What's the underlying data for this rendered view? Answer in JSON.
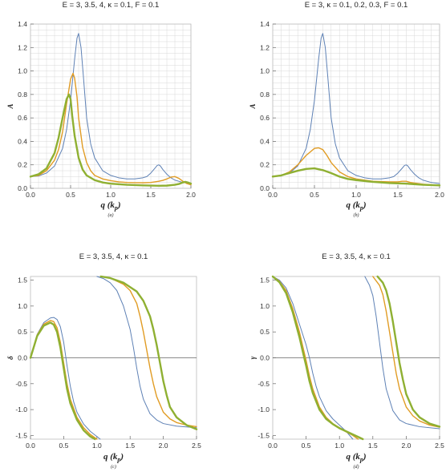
{
  "figure": {
    "xlabel": "q (k",
    "xlabel_sub": "p",
    "xlabel_close": ")",
    "colors": {
      "blue": "#5E81B5",
      "orange": "#E19C24",
      "green": "#8FB032",
      "grid": "#D8D8D8",
      "axis": "#666666"
    }
  },
  "chart_data": [
    {
      "type": "line",
      "title": "E = 3, 3.5, 4, κ = 0.1, F = 0.1",
      "ylabel": "A",
      "caption": "(a)",
      "xlim": [
        0,
        2
      ],
      "ylim": [
        0,
        1.4
      ],
      "xticks": [
        "0.0",
        "0.5",
        "1.0",
        "1.5",
        "2.0"
      ],
      "yticks": [
        "0.0",
        "0.2",
        "0.4",
        "0.6",
        "0.8",
        "1.0",
        "1.2",
        "1.4"
      ],
      "xtick_values": [
        0,
        0.5,
        1.0,
        1.5,
        2.0
      ],
      "ytick_values": [
        0,
        0.2,
        0.4,
        0.6,
        0.8,
        1.0,
        1.2,
        1.4
      ],
      "grid": true,
      "series": [
        {
          "color": "blue",
          "width": 1.0,
          "x": [
            0,
            0.1,
            0.2,
            0.3,
            0.4,
            0.45,
            0.5,
            0.55,
            0.58,
            0.6,
            0.63,
            0.66,
            0.7,
            0.75,
            0.8,
            0.9,
            1.0,
            1.1,
            1.2,
            1.3,
            1.4,
            1.45,
            1.5,
            1.55,
            1.58,
            1.6,
            1.62,
            1.65,
            1.7,
            1.75,
            1.8,
            1.9,
            2.0
          ],
          "y": [
            0.1,
            0.105,
            0.13,
            0.19,
            0.34,
            0.5,
            0.75,
            1.1,
            1.28,
            1.32,
            1.2,
            0.95,
            0.6,
            0.38,
            0.26,
            0.15,
            0.11,
            0.09,
            0.08,
            0.08,
            0.09,
            0.1,
            0.13,
            0.17,
            0.195,
            0.2,
            0.19,
            0.16,
            0.12,
            0.09,
            0.07,
            0.05,
            0.04
          ]
        },
        {
          "color": "orange",
          "width": 1.4,
          "x": [
            0,
            0.1,
            0.2,
            0.3,
            0.35,
            0.4,
            0.45,
            0.5,
            0.53,
            0.55,
            0.58,
            0.6,
            0.65,
            0.7,
            0.75,
            0.8,
            0.9,
            1.0,
            1.1,
            1.2,
            1.3,
            1.4,
            1.5,
            1.6,
            1.65,
            1.7,
            1.75,
            1.8,
            1.85,
            1.9,
            1.95,
            2.0
          ],
          "y": [
            0.1,
            0.11,
            0.15,
            0.24,
            0.33,
            0.48,
            0.72,
            0.93,
            0.98,
            0.94,
            0.78,
            0.6,
            0.35,
            0.22,
            0.15,
            0.11,
            0.08,
            0.065,
            0.055,
            0.05,
            0.048,
            0.047,
            0.05,
            0.06,
            0.068,
            0.08,
            0.095,
            0.1,
            0.085,
            0.06,
            0.04,
            0.03
          ]
        },
        {
          "color": "green",
          "width": 2.4,
          "x": [
            0,
            0.1,
            0.2,
            0.3,
            0.35,
            0.4,
            0.45,
            0.48,
            0.5,
            0.52,
            0.55,
            0.6,
            0.65,
            0.7,
            0.8,
            0.9,
            1.0,
            1.2,
            1.4,
            1.6,
            1.7,
            1.8,
            1.85,
            1.9,
            1.93,
            1.96,
            2.0
          ],
          "y": [
            0.1,
            0.12,
            0.17,
            0.3,
            0.43,
            0.6,
            0.76,
            0.8,
            0.76,
            0.62,
            0.45,
            0.26,
            0.16,
            0.11,
            0.07,
            0.05,
            0.04,
            0.03,
            0.025,
            0.022,
            0.023,
            0.03,
            0.037,
            0.05,
            0.055,
            0.05,
            0.04
          ]
        }
      ]
    },
    {
      "type": "line",
      "title": "E = 3, κ = 0.1, 0.2, 0.3, F = 0.1",
      "ylabel": "A",
      "caption": "(b)",
      "xlim": [
        0,
        2
      ],
      "ylim": [
        0,
        1.4
      ],
      "xticks": [
        "0.0",
        "0.5",
        "1.0",
        "1.5",
        "2.0"
      ],
      "yticks": [
        "0.0",
        "0.2",
        "0.4",
        "0.6",
        "0.8",
        "1.0",
        "1.2",
        "1.4"
      ],
      "xtick_values": [
        0,
        0.5,
        1.0,
        1.5,
        2.0
      ],
      "ytick_values": [
        0,
        0.2,
        0.4,
        0.6,
        0.8,
        1.0,
        1.2,
        1.4
      ],
      "grid": true,
      "series": [
        {
          "color": "blue",
          "width": 1.0,
          "x": [
            0,
            0.1,
            0.2,
            0.3,
            0.4,
            0.45,
            0.5,
            0.55,
            0.58,
            0.6,
            0.63,
            0.66,
            0.7,
            0.75,
            0.8,
            0.9,
            1.0,
            1.1,
            1.2,
            1.3,
            1.4,
            1.45,
            1.5,
            1.55,
            1.58,
            1.6,
            1.62,
            1.65,
            1.7,
            1.75,
            1.8,
            1.9,
            2.0
          ],
          "y": [
            0.1,
            0.105,
            0.13,
            0.19,
            0.34,
            0.5,
            0.75,
            1.1,
            1.28,
            1.32,
            1.2,
            0.95,
            0.6,
            0.38,
            0.26,
            0.15,
            0.11,
            0.09,
            0.08,
            0.08,
            0.09,
            0.1,
            0.13,
            0.17,
            0.195,
            0.2,
            0.19,
            0.16,
            0.12,
            0.09,
            0.07,
            0.05,
            0.04
          ]
        },
        {
          "color": "orange",
          "width": 1.4,
          "x": [
            0,
            0.1,
            0.2,
            0.3,
            0.4,
            0.5,
            0.55,
            0.6,
            0.65,
            0.7,
            0.8,
            0.9,
            1.0,
            1.2,
            1.4,
            1.5,
            1.55,
            1.6,
            1.65,
            1.7,
            1.8,
            1.9,
            2.0
          ],
          "y": [
            0.1,
            0.11,
            0.14,
            0.2,
            0.28,
            0.34,
            0.345,
            0.33,
            0.28,
            0.22,
            0.14,
            0.1,
            0.08,
            0.06,
            0.055,
            0.055,
            0.06,
            0.06,
            0.05,
            0.045,
            0.035,
            0.03,
            0.025
          ]
        },
        {
          "color": "green",
          "width": 2.4,
          "x": [
            0,
            0.1,
            0.2,
            0.3,
            0.4,
            0.5,
            0.6,
            0.7,
            0.8,
            0.9,
            1.0,
            1.2,
            1.4,
            1.6,
            1.8,
            2.0
          ],
          "y": [
            0.1,
            0.11,
            0.13,
            0.15,
            0.165,
            0.17,
            0.155,
            0.13,
            0.1,
            0.08,
            0.07,
            0.055,
            0.045,
            0.04,
            0.03,
            0.025
          ]
        }
      ]
    },
    {
      "type": "line",
      "title": "E = 3, 3.5, 4, κ = 0.1",
      "ylabel": "δ",
      "caption": "(c)",
      "xlim": [
        0,
        2.5
      ],
      "ylim": [
        -1.5708,
        1.5708
      ],
      "xticks": [
        "0.0",
        "0.5",
        "1.0",
        "1.5",
        "2.0",
        "2.5"
      ],
      "yticks": [
        "-1.5",
        "-1.0",
        "-0.5",
        "0.0",
        "0.5",
        "1.0",
        "1.5"
      ],
      "xtick_values": [
        0,
        0.5,
        1.0,
        1.5,
        2.0,
        2.5
      ],
      "ytick_values": [
        -1.5,
        -1.0,
        -0.5,
        0.0,
        0.5,
        1.0,
        1.5
      ],
      "grid": false,
      "zero_line": true,
      "series": [
        {
          "color": "blue",
          "width": 1.0,
          "x": [
            0,
            0.1,
            0.2,
            0.3,
            0.35,
            0.4,
            0.45,
            0.5,
            0.55,
            0.6,
            0.65,
            0.7,
            0.8,
            0.9,
            1.0,
            1.05,
            null,
            1.0,
            1.1,
            1.2,
            1.3,
            1.4,
            1.5,
            1.55,
            1.6,
            1.65,
            1.7,
            1.8,
            1.9,
            2.0,
            2.2,
            2.5
          ],
          "y": [
            0,
            0.45,
            0.68,
            0.77,
            0.78,
            0.74,
            0.6,
            0.3,
            -0.15,
            -0.55,
            -0.85,
            -1.05,
            -1.28,
            -1.42,
            -1.52,
            -1.5708,
            null,
            1.5708,
            1.53,
            1.45,
            1.3,
            1.0,
            0.55,
            0.2,
            -0.2,
            -0.55,
            -0.8,
            -1.08,
            -1.2,
            -1.27,
            -1.32,
            -1.35
          ]
        },
        {
          "color": "orange",
          "width": 1.4,
          "x": [
            0,
            0.1,
            0.2,
            0.3,
            0.35,
            0.4,
            0.45,
            0.5,
            0.55,
            0.6,
            0.7,
            0.8,
            0.9,
            1.0,
            null,
            1.06,
            1.2,
            1.4,
            1.5,
            1.6,
            1.65,
            1.7,
            1.75,
            1.8,
            1.85,
            1.9,
            2.0,
            2.1,
            2.2,
            2.35,
            2.5
          ],
          "y": [
            0,
            0.44,
            0.65,
            0.72,
            0.7,
            0.58,
            0.3,
            -0.1,
            -0.5,
            -0.8,
            -1.15,
            -1.35,
            -1.48,
            -1.5708,
            null,
            1.5708,
            1.54,
            1.42,
            1.3,
            1.05,
            0.8,
            0.5,
            0.15,
            -0.2,
            -0.5,
            -0.75,
            -1.05,
            -1.18,
            -1.25,
            -1.3,
            -1.33
          ]
        },
        {
          "color": "green",
          "width": 2.4,
          "x": [
            0,
            0.1,
            0.2,
            0.3,
            0.35,
            0.4,
            0.45,
            0.5,
            0.55,
            0.6,
            0.7,
            0.8,
            0.9,
            0.97,
            null,
            1.06,
            1.2,
            1.4,
            1.6,
            1.7,
            1.8,
            1.85,
            1.9,
            1.95,
            2.0,
            2.05,
            2.1,
            2.2,
            2.35,
            2.5
          ],
          "y": [
            0,
            0.42,
            0.62,
            0.68,
            0.64,
            0.5,
            0.2,
            -0.2,
            -0.6,
            -0.88,
            -1.2,
            -1.4,
            -1.52,
            -1.5708,
            null,
            1.5708,
            1.54,
            1.45,
            1.28,
            1.1,
            0.8,
            0.55,
            0.25,
            -0.1,
            -0.45,
            -0.72,
            -0.95,
            -1.15,
            -1.3,
            -1.38
          ]
        }
      ]
    },
    {
      "type": "line",
      "title": "E = 3, 3.5, 4, κ = 0.1",
      "ylabel": "γ",
      "caption": "(d)",
      "xlim": [
        0,
        2.5
      ],
      "ylim": [
        -1.5708,
        1.5708
      ],
      "xticks": [
        "0.0",
        "0.5",
        "1.0",
        "1.5",
        "2.0",
        "2.5"
      ],
      "yticks": [
        "-1.5",
        "-1.0",
        "-0.5",
        "0.0",
        "0.5",
        "1.0",
        "1.5"
      ],
      "xtick_values": [
        0,
        0.5,
        1.0,
        1.5,
        2.0,
        2.5
      ],
      "ytick_values": [
        -1.5,
        -1.0,
        -0.5,
        0.0,
        0.5,
        1.0,
        1.5
      ],
      "grid": false,
      "zero_line": true,
      "series": [
        {
          "color": "blue",
          "width": 1.0,
          "x": [
            0,
            0.1,
            0.2,
            0.3,
            0.4,
            0.5,
            0.55,
            0.6,
            0.65,
            0.7,
            0.8,
            0.9,
            1.0,
            1.1,
            1.2,
            null,
            1.38,
            1.45,
            1.5,
            1.55,
            1.6,
            1.65,
            1.7,
            1.8,
            1.9,
            2.0,
            2.2,
            2.5
          ],
          "y": [
            1.5708,
            1.5,
            1.35,
            1.05,
            0.65,
            0.25,
            0.0,
            -0.3,
            -0.55,
            -0.75,
            -1.02,
            -1.18,
            -1.3,
            -1.42,
            -1.5708,
            null,
            1.5708,
            1.4,
            1.2,
            0.8,
            0.3,
            -0.2,
            -0.6,
            -1.02,
            -1.2,
            -1.27,
            -1.33,
            -1.37
          ]
        },
        {
          "color": "orange",
          "width": 1.4,
          "x": [
            0,
            0.1,
            0.2,
            0.3,
            0.4,
            0.45,
            0.5,
            0.55,
            0.6,
            0.7,
            0.8,
            0.9,
            1.0,
            1.1,
            1.2,
            1.28,
            null,
            1.5,
            1.6,
            1.65,
            1.7,
            1.75,
            1.8,
            1.85,
            1.9,
            2.0,
            2.1,
            2.2,
            2.35,
            2.5
          ],
          "y": [
            1.5708,
            1.48,
            1.3,
            0.95,
            0.5,
            0.22,
            -0.05,
            -0.35,
            -0.6,
            -0.95,
            -1.15,
            -1.27,
            -1.35,
            -1.43,
            -1.5,
            -1.5708,
            null,
            1.5708,
            1.4,
            1.22,
            0.9,
            0.5,
            0.1,
            -0.3,
            -0.6,
            -0.95,
            -1.12,
            -1.22,
            -1.3,
            -1.34
          ]
        },
        {
          "color": "green",
          "width": 2.4,
          "x": [
            0,
            0.1,
            0.2,
            0.3,
            0.4,
            0.45,
            0.5,
            0.55,
            0.6,
            0.7,
            0.8,
            0.9,
            1.0,
            1.1,
            1.2,
            1.3,
            1.35,
            null,
            1.57,
            1.65,
            1.7,
            1.75,
            1.8,
            1.85,
            1.9,
            1.95,
            2.0,
            2.1,
            2.2,
            2.35,
            2.5
          ],
          "y": [
            1.5708,
            1.46,
            1.25,
            0.88,
            0.4,
            0.12,
            -0.15,
            -0.45,
            -0.68,
            -1.0,
            -1.18,
            -1.28,
            -1.36,
            -1.42,
            -1.48,
            -1.54,
            -1.5708,
            null,
            1.5708,
            1.45,
            1.3,
            1.05,
            0.7,
            0.3,
            -0.1,
            -0.42,
            -0.7,
            -1.0,
            -1.15,
            -1.27,
            -1.33
          ]
        }
      ]
    }
  ]
}
